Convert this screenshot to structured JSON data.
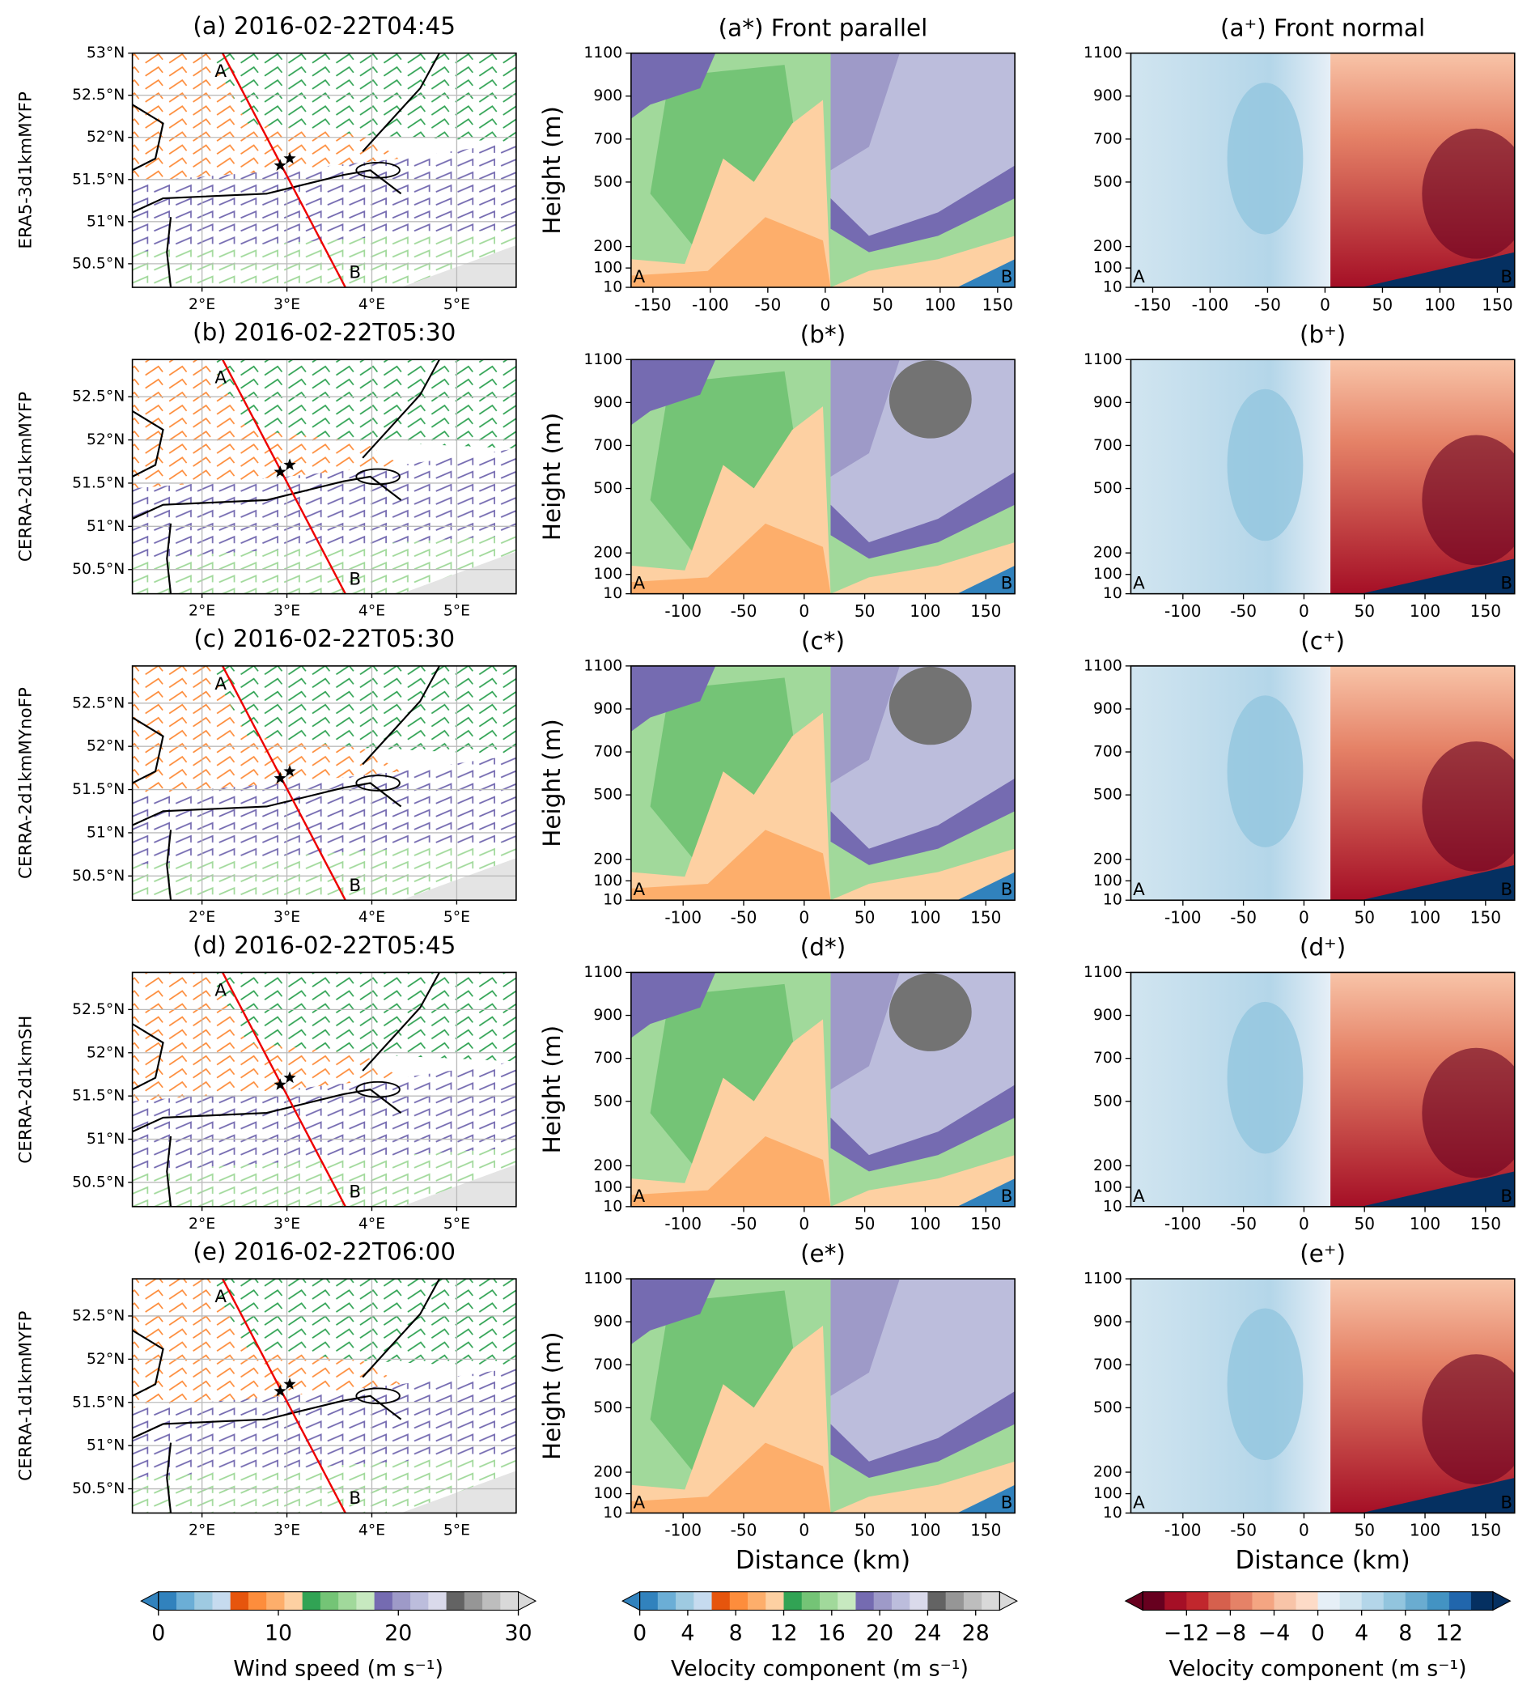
{
  "figure": {
    "rows": [
      {
        "map_title": "(a) 2016-02-22T04:45",
        "model": "ERA5-3d1kmMYFP",
        "parallel_title": "(a*) Front parallel",
        "normal_title": "(a⁺) Front normal",
        "map_ylim": [
          50.22,
          53.0
        ],
        "section_xlim": [
          -169,
          165
        ],
        "section_xticks": [
          -150,
          -100,
          -50,
          0,
          50,
          100,
          150
        ]
      },
      {
        "map_title": "(b) 2016-02-22T05:30",
        "model": "CERRA-2d1kmMYFP",
        "parallel_title": "(b*)",
        "normal_title": "(b⁺)",
        "map_ylim": [
          50.22,
          52.93
        ],
        "section_xlim": [
          -143,
          174
        ],
        "section_xticks": [
          -100,
          -50,
          0,
          50,
          100,
          150
        ]
      },
      {
        "map_title": "(c) 2016-02-22T05:30",
        "model": "CERRA-2d1kmMYnoFP",
        "parallel_title": "(c*)",
        "normal_title": "(c⁺)",
        "map_ylim": [
          50.22,
          52.93
        ],
        "section_xlim": [
          -143,
          174
        ],
        "section_xticks": [
          -100,
          -50,
          0,
          50,
          100,
          150
        ]
      },
      {
        "map_title": "(d) 2016-02-22T05:45",
        "model": "CERRA-2d1kmSH",
        "parallel_title": "(d*)",
        "normal_title": "(d⁺)",
        "map_ylim": [
          50.22,
          52.93
        ],
        "section_xlim": [
          -143,
          174
        ],
        "section_xticks": [
          -100,
          -50,
          0,
          50,
          100,
          150
        ]
      },
      {
        "map_title": "(e) 2016-02-22T06:00",
        "model": "CERRA-1d1kmMYFP",
        "parallel_title": "(e*)",
        "normal_title": "(e⁺)",
        "map_ylim": [
          50.22,
          52.93
        ],
        "section_xlim": [
          -143,
          174
        ],
        "section_xticks": [
          -100,
          -50,
          0,
          50,
          100,
          150
        ]
      }
    ],
    "map": {
      "xlim": [
        1.18,
        5.7
      ],
      "xticks": [
        {
          "value": 2,
          "label": "2°E"
        },
        {
          "value": 3,
          "label": "3°E"
        },
        {
          "value": 4,
          "label": "4°E"
        },
        {
          "value": 5,
          "label": "5°E"
        }
      ],
      "yticks": [
        {
          "value": 53,
          "label": "53°N"
        },
        {
          "value": 52.5,
          "label": "52.5°N"
        },
        {
          "value": 52,
          "label": "52°N"
        },
        {
          "value": 51.5,
          "label": "51.5°N"
        },
        {
          "value": 51,
          "label": "51°N"
        },
        {
          "value": 50.5,
          "label": "50.5°N"
        }
      ],
      "endpoint_labels": [
        "A",
        "B"
      ]
    },
    "section": {
      "ylabel": "Height (m)",
      "xlabel": "Distance (km)",
      "ylim": [
        10,
        1100
      ],
      "yticks": [
        10,
        100,
        200,
        500,
        700,
        900,
        1100
      ],
      "endpoint_labels": [
        "A",
        "B"
      ]
    },
    "colorbars": [
      {
        "label": "Wind speed (m s⁻¹)",
        "lim": [
          0,
          30
        ],
        "ticks": [
          0,
          10,
          20,
          30
        ],
        "colors": [
          "#3182bd",
          "#6baed6",
          "#9ecae1",
          "#c6dbef",
          "#e6550d",
          "#fd8d3c",
          "#fdae6b",
          "#fdd0a2",
          "#31a354",
          "#74c476",
          "#a1d99b",
          "#c7e9c0",
          "#756bb1",
          "#9e9ac8",
          "#bcbddc",
          "#dadaeb",
          "#636363",
          "#969696",
          "#bdbdbd",
          "#d9d9d9"
        ]
      },
      {
        "label": "Velocity component (m s⁻¹)",
        "lim": [
          0,
          30
        ],
        "ticks": [
          0,
          4,
          8,
          12,
          16,
          20,
          24,
          28
        ],
        "colors": [
          "#3182bd",
          "#6baed6",
          "#9ecae1",
          "#c6dbef",
          "#e6550d",
          "#fd8d3c",
          "#fdae6b",
          "#fdd0a2",
          "#31a354",
          "#74c476",
          "#a1d99b",
          "#c7e9c0",
          "#756bb1",
          "#9e9ac8",
          "#bcbddc",
          "#dadaeb",
          "#636363",
          "#969696",
          "#bdbdbd",
          "#d9d9d9"
        ]
      },
      {
        "label": "Velocity component (m s⁻¹)",
        "lim": [
          -16,
          16
        ],
        "ticks": [
          {
            "value": -12,
            "label": "−12"
          },
          {
            "value": -8,
            "label": "−8"
          },
          {
            "value": -4,
            "label": "−4"
          },
          0,
          4,
          8,
          12
        ],
        "colors": [
          "#67001f",
          "#a50f26",
          "#c1272d",
          "#d6604d",
          "#e58267",
          "#f4a582",
          "#f8c4a8",
          "#fddbc7",
          "#e6eff7",
          "#d1e5f0",
          "#b4d6e9",
          "#92c5de",
          "#6aacd0",
          "#4393c3",
          "#2166ac",
          "#053061"
        ]
      }
    ]
  }
}
